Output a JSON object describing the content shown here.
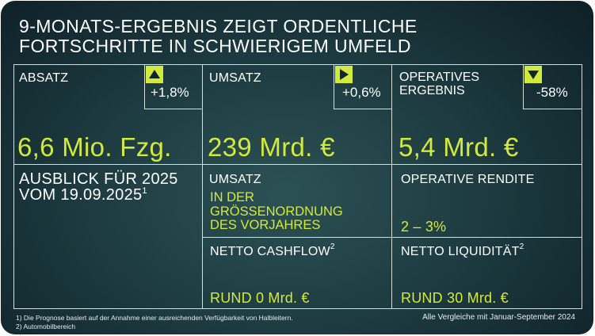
{
  "title": {
    "line1": "9-MONATS-ERGEBNIS ZEIGT ORDENTLICHE",
    "line2": "FORTSCHRITTE IN SCHWIERIGEM UMFELD"
  },
  "kpis": [
    {
      "label": "ABSATZ",
      "value": "6,6 Mio. Fzg.",
      "change": "+1,8%",
      "direction": "up"
    },
    {
      "label": "UMSATZ",
      "value": "239 Mrd. €",
      "change": "+0,6%",
      "direction": "right"
    },
    {
      "label_line1": "OPERATIVES",
      "label_line2": "ERGEBNIS",
      "value": "5,4 Mrd. €",
      "change": "-58%",
      "direction": "down"
    }
  ],
  "outlook": {
    "line1": "AUSBLICK FÜR 2025",
    "line2": "VOM 19.09.2025",
    "footnote_ref": "1",
    "umsatz_label": "UMSATZ",
    "umsatz_value_line1": "IN DER",
    "umsatz_value_line2": "GRÖSSENORDNUNG",
    "umsatz_value_line3": "DES VORJAHRES",
    "rendite_label": "OPERATIVE RENDITE",
    "rendite_value": "2 – 3%",
    "cashflow_label": "NETTO CASHFLOW",
    "cashflow_ref": "2",
    "cashflow_value": "RUND 0 Mrd. €",
    "liquiditaet_label": "NETTO LIQUIDITÄT",
    "liquiditaet_ref": "2",
    "liquiditaet_value": "RUND 30 Mrd. €"
  },
  "footnotes": {
    "note1": "1) Die Prognose basiert auf der Annahme einer ausreichenden Verfügbarkeit von Halbleitern.",
    "note2": "2) Automobilbereich",
    "comparison": "Alle Vergleiche mit Januar-September 2024"
  },
  "colors": {
    "accent": "#d2ea38",
    "background_dark": "#10252b",
    "background_mid": "#2c5154",
    "text": "#ffffff"
  }
}
